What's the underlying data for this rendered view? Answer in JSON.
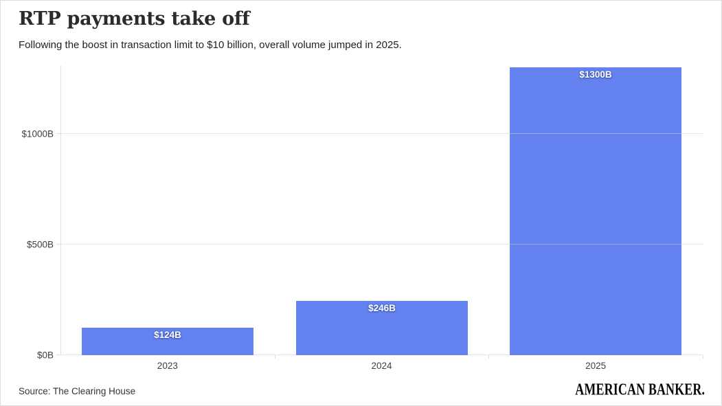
{
  "header": {
    "title": "RTP payments take off",
    "subtitle": "Following the boost in transaction limit to $10 billion, overall volume jumped in 2025."
  },
  "chart_data": {
    "type": "bar",
    "categories": [
      "2023",
      "2024",
      "2025"
    ],
    "values": [
      124,
      246,
      1300
    ],
    "value_labels": [
      "$124B",
      "$246B",
      "$1300B"
    ],
    "y_ticks": [
      {
        "value": 0,
        "label": "$0B"
      },
      {
        "value": 500,
        "label": "$500B"
      },
      {
        "value": 1000,
        "label": "$1000B"
      }
    ],
    "ylim": [
      0,
      1310
    ],
    "xlabel": "",
    "ylabel": "",
    "grid": true,
    "legend_position": "none",
    "bar_color": "#6482F0",
    "gridline_color": "#e9e9e9",
    "axis_color": "#e0e0e0",
    "bar_label_color": "#ffffff"
  },
  "footer": {
    "source": "Source: The Clearing House",
    "brand": "AMERICAN BANKER."
  }
}
